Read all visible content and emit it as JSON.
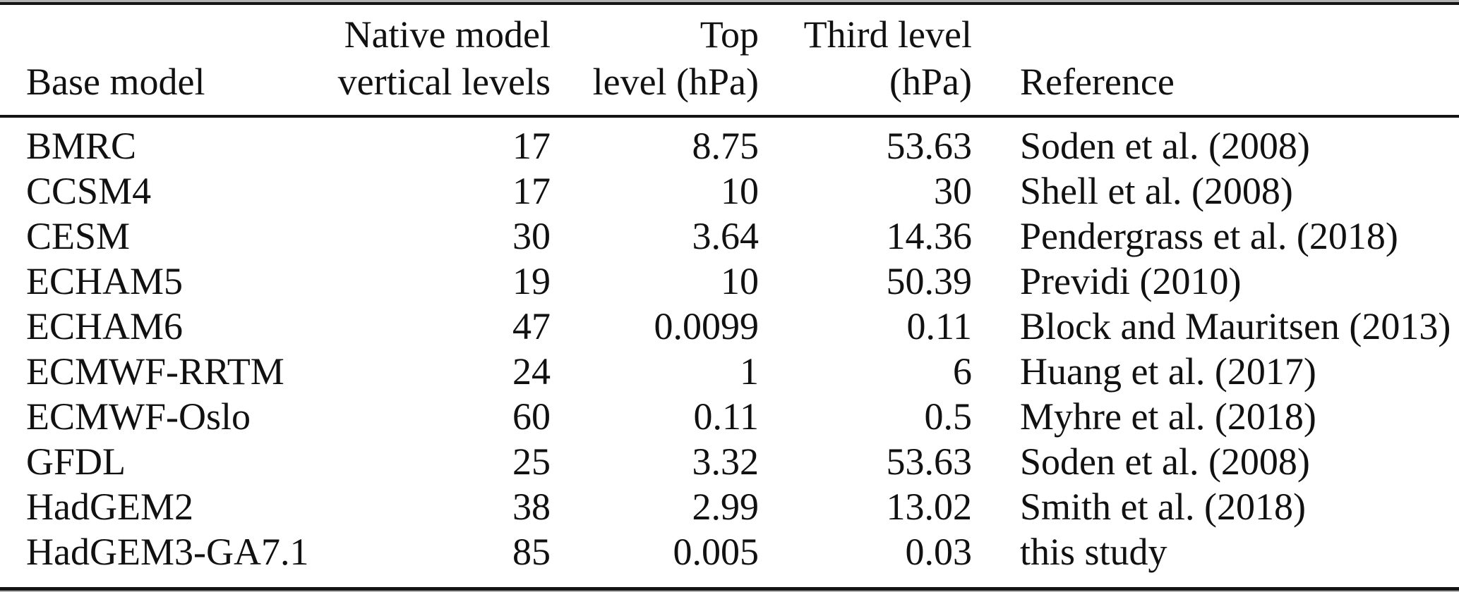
{
  "document_type": "journal table",
  "colors": {
    "background": "#ffffff",
    "text": "#111111",
    "rule_dark": "#151515",
    "rule_light": "#b3b3b3"
  },
  "table": {
    "header": {
      "base_model": "Base model",
      "native_line1": "Native model",
      "native_line2": "vertical levels",
      "top_line1": "Top",
      "top_line2": "level (hPa)",
      "third_line1": "Third level",
      "third_line2": "(hPa)",
      "reference": "Reference"
    },
    "rows": [
      {
        "model": "BMRC",
        "levels": "17",
        "top": "8.75",
        "third": "53.63",
        "ref": "Soden et al. (2008)"
      },
      {
        "model": "CCSM4",
        "levels": "17",
        "top": "10",
        "third": "30",
        "ref": "Shell et al. (2008)"
      },
      {
        "model": "CESM",
        "levels": "30",
        "top": "3.64",
        "third": "14.36",
        "ref": "Pendergrass et al. (2018)"
      },
      {
        "model": "ECHAM5",
        "levels": "19",
        "top": "10",
        "third": "50.39",
        "ref": "Previdi (2010)"
      },
      {
        "model": "ECHAM6",
        "levels": "47",
        "top": "0.0099",
        "third": "0.11",
        "ref": "Block and Mauritsen (2013)"
      },
      {
        "model": "ECMWF-RRTM",
        "levels": "24",
        "top": "1",
        "third": "6",
        "ref": "Huang et al. (2017)"
      },
      {
        "model": "ECMWF-Oslo",
        "levels": "60",
        "top": "0.11",
        "third": "0.5",
        "ref": "Myhre et al. (2018)"
      },
      {
        "model": "GFDL",
        "levels": "25",
        "top": "3.32",
        "third": "53.63",
        "ref": "Soden et al. (2008)"
      },
      {
        "model": "HadGEM2",
        "levels": "38",
        "top": "2.99",
        "third": "13.02",
        "ref": "Smith et al. (2018)"
      },
      {
        "model": "HadGEM3-GA7.1",
        "levels": "85",
        "top": "0.005",
        "third": "0.03",
        "ref": "this study"
      }
    ]
  }
}
